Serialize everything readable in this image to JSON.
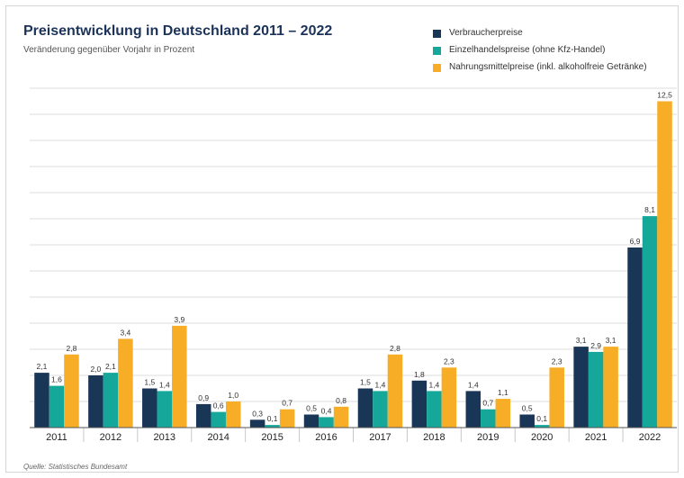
{
  "title": "Preisentwicklung in Deutschland 2011 – 2022",
  "subtitle": "Veränderung gegenüber Vorjahr in Prozent",
  "source": "Quelle: Statistisches Bundesamt",
  "colors": {
    "verbraucher": "#1a3657",
    "einzelhandel": "#15a89a",
    "nahrung": "#f7ad26"
  },
  "chart_data": {
    "type": "bar",
    "title": "Preisentwicklung in Deutschland 2011 – 2022",
    "subtitle": "Veränderung gegenüber Vorjahr in Prozent",
    "xlabel": "",
    "ylabel": "",
    "ylim": [
      0,
      13
    ],
    "grid": true,
    "legend_position": "top-right",
    "categories": [
      "2011",
      "2012",
      "2013",
      "2014",
      "2015",
      "2016",
      "2017",
      "2018",
      "2019",
      "2020",
      "2021",
      "2022"
    ],
    "series": [
      {
        "name": "Verbraucherpreise",
        "values": [
          2.1,
          2.0,
          1.5,
          0.9,
          0.3,
          0.5,
          1.5,
          1.8,
          1.4,
          0.5,
          3.1,
          6.9
        ],
        "labels": [
          "2,1",
          "2,0",
          "1,5",
          "0,9",
          "0,3",
          "0,5",
          "1,5",
          "1,8",
          "1,4",
          "0,5",
          "3,1",
          "6,9"
        ]
      },
      {
        "name": "Einzelhandelspreise (ohne Kfz-Handel)",
        "values": [
          1.6,
          2.1,
          1.4,
          0.6,
          0.1,
          0.4,
          1.4,
          1.4,
          0.7,
          0.1,
          2.9,
          8.1
        ],
        "labels": [
          "1,6",
          "2,1",
          "1,4",
          "0,6",
          "0,1",
          "0,4",
          "1,4",
          "1,4",
          "0,7",
          "0,1",
          "2,9",
          "8,1"
        ]
      },
      {
        "name": "Nahrungsmittelpreise (inkl. alkoholfreie Getränke)",
        "values": [
          2.8,
          3.4,
          3.9,
          1.0,
          0.7,
          0.8,
          2.8,
          2.3,
          1.1,
          2.3,
          3.1,
          12.5
        ],
        "labels": [
          "2,8",
          "3,4",
          "3,9",
          "1,0",
          "0,7",
          "0,8",
          "2,8",
          "2,3",
          "1,1",
          "2,3",
          "3,1",
          "12,5"
        ]
      }
    ]
  }
}
